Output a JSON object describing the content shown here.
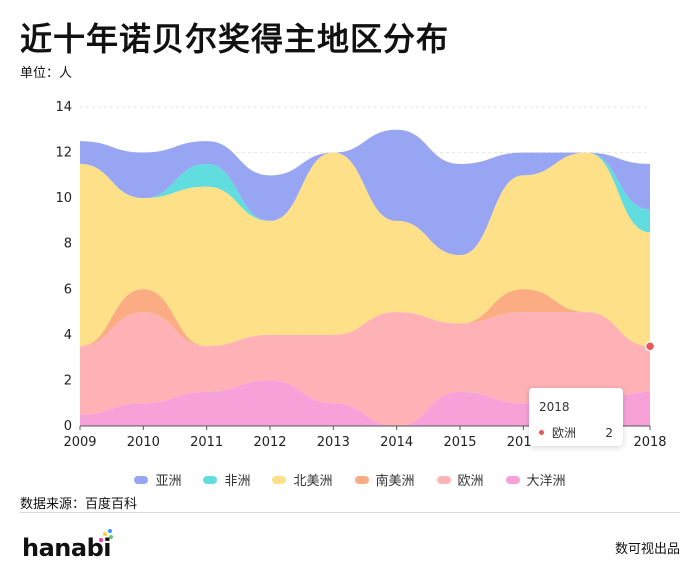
{
  "title": "近十年诺贝尔奖得主地区分布",
  "unit_label": "单位：人",
  "source": "数据来源：百度百科",
  "footer_brand": "hanabi",
  "footer_right": "数可视出品",
  "tooltip": {
    "title": "2018",
    "series": "欧洲",
    "value": "2"
  },
  "chart_data": {
    "type": "area",
    "stacked": true,
    "x": [
      "2009",
      "2010",
      "2011",
      "2012",
      "2013",
      "2014",
      "2015",
      "2016",
      "2017",
      "2018"
    ],
    "ylim": [
      0,
      14
    ],
    "yticks": [
      0,
      2,
      4,
      6,
      8,
      10,
      12,
      14
    ],
    "title": "近十年诺贝尔奖得主地区分布",
    "ylabel": "单位：人",
    "legend_position": "bottom",
    "series": [
      {
        "name": "大洋洲",
        "color": "#f7a1d9",
        "values": [
          0.5,
          1,
          1.5,
          2,
          1,
          0,
          1.5,
          1,
          1,
          1.5
        ]
      },
      {
        "name": "欧洲",
        "color": "#ffb2b6",
        "values": [
          3,
          4,
          2,
          2,
          3,
          5,
          3,
          4,
          4,
          2
        ]
      },
      {
        "name": "南美洲",
        "color": "#fcac82",
        "values": [
          0,
          1,
          0,
          0,
          0,
          0,
          0,
          1,
          0,
          0
        ]
      },
      {
        "name": "北美洲",
        "color": "#fde087",
        "values": [
          8,
          4,
          7,
          5,
          8,
          4,
          3,
          5,
          7,
          5
        ]
      },
      {
        "name": "非洲",
        "color": "#62dddf",
        "values": [
          0,
          0,
          1,
          0,
          0,
          0,
          0,
          0,
          0,
          1
        ]
      },
      {
        "name": "亚洲",
        "color": "#97a5f2",
        "values": [
          1,
          2,
          1,
          2,
          0,
          4,
          4,
          1,
          0,
          2
        ]
      }
    ],
    "legend_order": [
      "亚洲",
      "非洲",
      "北美洲",
      "南美洲",
      "欧洲",
      "大洋洲"
    ]
  }
}
